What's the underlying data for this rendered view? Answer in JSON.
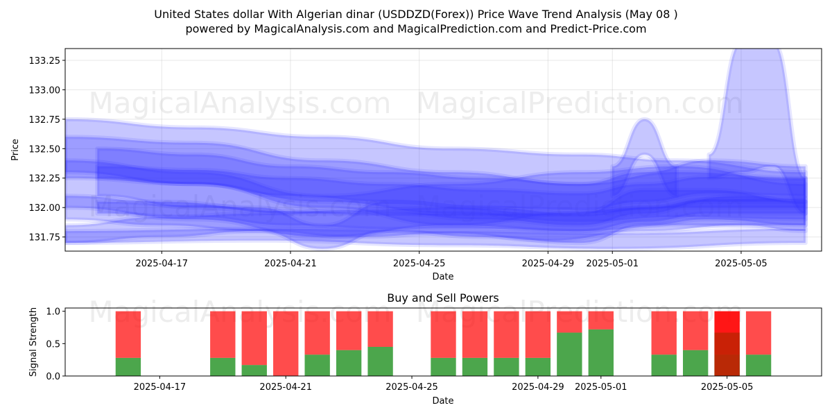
{
  "title_line1": "United States dollar With Algerian dinar (USDDZD(Forex)) Price Wave Trend Analysis (May 08 )",
  "title_line2": "powered by MagicalAnalysis.com and MagicalPrediction.com and Predict-Price.com",
  "watermark_left": "MagicalAnalysis.com",
  "watermark_right": "MagicalPrediction.com",
  "colors": {
    "band": "#3333ff",
    "buy": "#008000",
    "sell": "#ff0000"
  },
  "chart_data": [
    {
      "type": "area",
      "title": "",
      "xlabel": "Date",
      "ylabel": "Price",
      "xlim": [
        "2025-04-14",
        "2025-05-07"
      ],
      "ylim": [
        131.63,
        133.35
      ],
      "x_ticks": [
        "2025-04-17",
        "2025-04-21",
        "2025-04-25",
        "2025-04-29",
        "2025-05-01",
        "2025-05-05"
      ],
      "y_ticks": [
        "131.75",
        "132.00",
        "132.25",
        "132.50",
        "132.75",
        "133.00",
        "133.25"
      ],
      "grid": true,
      "bands": [
        {
          "x": [
            "2025-04-14",
            "2025-04-18",
            "2025-04-22",
            "2025-04-26",
            "2025-04-30",
            "2025-05-03",
            "2025-05-07"
          ],
          "low": [
            132.25,
            132.2,
            132.05,
            131.95,
            131.88,
            131.92,
            131.9
          ],
          "high": [
            132.75,
            132.68,
            132.6,
            132.5,
            132.45,
            132.4,
            132.3
          ]
        },
        {
          "x": [
            "2025-04-14",
            "2025-04-18",
            "2025-04-22",
            "2025-04-26",
            "2025-04-30",
            "2025-05-03",
            "2025-05-07"
          ],
          "low": [
            132.3,
            132.2,
            132.0,
            131.85,
            131.8,
            131.85,
            131.85
          ],
          "high": [
            132.6,
            132.55,
            132.4,
            132.3,
            132.2,
            132.3,
            132.25
          ]
        },
        {
          "x": [
            "2025-04-14",
            "2025-04-17",
            "2025-04-20",
            "2025-04-23",
            "2025-04-26",
            "2025-04-29",
            "2025-05-02",
            "2025-05-05",
            "2025-05-07"
          ],
          "low": [
            131.7,
            131.75,
            131.8,
            131.75,
            131.78,
            131.72,
            131.8,
            131.85,
            131.8
          ],
          "high": [
            131.85,
            131.92,
            131.95,
            131.98,
            132.0,
            131.95,
            132.0,
            132.1,
            132.05
          ]
        },
        {
          "x": [
            "2025-04-14",
            "2025-04-18",
            "2025-04-22",
            "2025-04-26",
            "2025-04-30",
            "2025-05-03",
            "2025-05-07"
          ],
          "low": [
            132.0,
            131.9,
            131.75,
            131.85,
            131.95,
            132.0,
            132.0
          ],
          "high": [
            132.4,
            132.3,
            132.1,
            132.2,
            132.3,
            132.35,
            132.2
          ]
        },
        {
          "x": [
            "2025-04-14",
            "2025-04-17",
            "2025-04-20",
            "2025-04-22",
            "2025-04-24",
            "2025-04-27",
            "2025-04-30",
            "2025-05-02",
            "2025-05-04",
            "2025-05-07"
          ],
          "low": [
            131.9,
            131.85,
            131.8,
            131.65,
            131.8,
            131.75,
            131.7,
            131.85,
            131.9,
            131.85
          ],
          "high": [
            132.1,
            132.05,
            132.0,
            131.85,
            132.05,
            132.0,
            131.95,
            132.15,
            132.15,
            132.05
          ]
        },
        {
          "x": [
            "2025-04-15",
            "2025-04-18",
            "2025-04-21",
            "2025-04-24",
            "2025-04-27",
            "2025-04-30",
            "2025-05-02",
            "2025-05-04",
            "2025-05-07"
          ],
          "low": [
            132.1,
            132.0,
            131.95,
            131.95,
            131.9,
            131.85,
            131.95,
            132.05,
            132.05
          ],
          "high": [
            132.5,
            132.45,
            132.35,
            132.3,
            132.25,
            132.2,
            132.3,
            132.4,
            132.35
          ]
        },
        {
          "x": [
            "2025-04-15",
            "2025-04-18",
            "2025-04-21",
            "2025-04-24",
            "2025-04-27",
            "2025-04-30",
            "2025-05-02",
            "2025-05-04",
            "2025-05-07"
          ],
          "low": [
            132.25,
            132.2,
            132.1,
            132.05,
            132.0,
            131.98,
            132.05,
            132.12,
            132.1
          ],
          "high": [
            132.35,
            132.32,
            132.25,
            132.2,
            132.15,
            132.12,
            132.2,
            132.26,
            132.24
          ]
        },
        {
          "x": [
            "2025-04-15",
            "2025-04-18",
            "2025-04-21",
            "2025-04-24",
            "2025-04-27",
            "2025-04-30",
            "2025-05-02",
            "2025-05-04",
            "2025-05-07"
          ],
          "low": [
            131.95,
            131.92,
            131.85,
            131.82,
            131.82,
            131.8,
            131.88,
            131.95,
            131.95
          ],
          "high": [
            132.05,
            132.02,
            131.97,
            131.95,
            131.95,
            131.94,
            132.0,
            132.07,
            132.08
          ]
        },
        {
          "x": [
            "2025-04-14",
            "2025-04-20",
            "2025-04-26",
            "2025-05-01",
            "2025-05-07"
          ],
          "low": [
            131.7,
            131.72,
            131.68,
            131.65,
            131.7
          ],
          "high": [
            131.8,
            131.82,
            131.8,
            131.78,
            131.82
          ]
        },
        {
          "x": [
            "2025-05-04",
            "2025-05-05",
            "2025-05-06",
            "2025-05-07"
          ],
          "low": [
            132.25,
            132.3,
            132.35,
            131.95
          ],
          "high": [
            132.45,
            133.4,
            133.4,
            132.25
          ]
        },
        {
          "x": [
            "2025-05-01",
            "2025-05-02",
            "2025-05-03"
          ],
          "low": [
            132.1,
            132.45,
            132.1
          ],
          "high": [
            132.35,
            132.75,
            132.35
          ]
        }
      ]
    },
    {
      "type": "bar",
      "stacked": true,
      "title": "Buy and Sell Powers",
      "xlabel": "Date",
      "ylabel": "Signal Strength",
      "xlim": [
        "2025-04-14",
        "2025-05-08"
      ],
      "ylim": [
        0,
        1.05
      ],
      "x_ticks": [
        "2025-04-17",
        "2025-04-21",
        "2025-04-25",
        "2025-04-29",
        "2025-05-01",
        "2025-05-05"
      ],
      "y_ticks": [
        "0.0",
        "0.5",
        "1.0"
      ],
      "categories": [
        "2025-04-16",
        "2025-04-19",
        "2025-04-20",
        "2025-04-21",
        "2025-04-22",
        "2025-04-23",
        "2025-04-24",
        "2025-04-26",
        "2025-04-27",
        "2025-04-28",
        "2025-04-29",
        "2025-04-30",
        "2025-05-01",
        "2025-05-03",
        "2025-05-04",
        "2025-05-05",
        "2025-05-06"
      ],
      "series": [
        {
          "name": "Buy",
          "values": [
            0.28,
            0.28,
            0.17,
            0.0,
            0.33,
            0.4,
            0.45,
            0.28,
            0.28,
            0.28,
            0.28,
            0.67,
            0.72,
            0.33,
            0.4,
            0.33,
            0.33
          ]
        },
        {
          "name": "Sell",
          "values": [
            0.72,
            0.72,
            0.83,
            1.0,
            0.67,
            0.6,
            0.55,
            0.72,
            0.72,
            0.72,
            0.72,
            0.33,
            0.28,
            0.67,
            0.6,
            0.67,
            0.67
          ]
        }
      ],
      "overlay": {
        "date": "2025-05-05",
        "buy_top": 0.67,
        "sell_top": 1.0
      }
    }
  ]
}
